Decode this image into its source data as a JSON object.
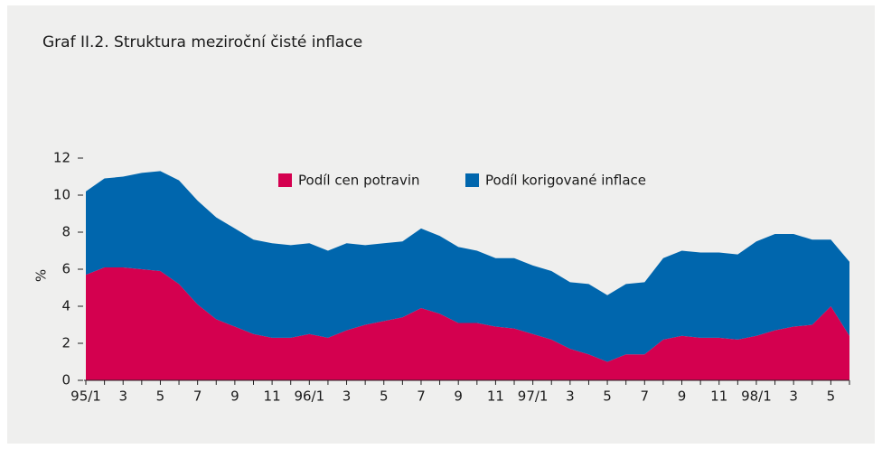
{
  "chart_data": {
    "type": "stacked_area",
    "title": "Graf II.2. Struktura meziroční čisté inflace",
    "y_label": "%",
    "categories": [
      "95/1",
      null,
      "3",
      null,
      "5",
      null,
      "7",
      null,
      "9",
      null,
      "11",
      null,
      "96/1",
      null,
      "3",
      null,
      "5",
      null,
      "7",
      null,
      "9",
      null,
      "11",
      null,
      "97/1",
      null,
      "3",
      null,
      "5",
      null,
      "7",
      null,
      "9",
      null,
      "11",
      null,
      "98/1",
      null,
      "3",
      null,
      "5",
      null
    ],
    "series": [
      {
        "name": "Podíl cen potravin",
        "color": "#d4004f",
        "values": [
          5.7,
          6.1,
          6.1,
          6.0,
          5.9,
          5.2,
          4.1,
          3.3,
          2.9,
          2.5,
          2.3,
          2.3,
          2.5,
          2.3,
          2.7,
          3.0,
          3.2,
          3.4,
          3.9,
          3.6,
          3.1,
          3.1,
          2.9,
          2.8,
          2.5,
          2.2,
          1.7,
          1.4,
          1.0,
          1.4,
          1.4,
          2.2,
          2.4,
          2.3,
          2.3,
          2.2,
          2.4,
          2.7,
          2.9,
          3.0,
          4.0,
          2.4
        ]
      },
      {
        "name": "Podíl korigované inflace",
        "color": "#0066ad",
        "values": [
          4.5,
          4.8,
          4.9,
          5.2,
          5.4,
          5.6,
          5.6,
          5.5,
          5.3,
          5.1,
          5.1,
          5.0,
          4.9,
          4.7,
          4.7,
          4.3,
          4.2,
          4.1,
          4.3,
          4.2,
          4.1,
          3.9,
          3.7,
          3.8,
          3.7,
          3.7,
          3.6,
          3.8,
          3.6,
          3.8,
          3.9,
          4.4,
          4.6,
          4.6,
          4.6,
          4.6,
          5.1,
          5.2,
          5.0,
          4.6,
          3.6,
          4.0
        ]
      }
    ],
    "ylim": [
      0,
      12
    ],
    "yticks": [
      0,
      2,
      4,
      6,
      8,
      10,
      12
    ]
  }
}
